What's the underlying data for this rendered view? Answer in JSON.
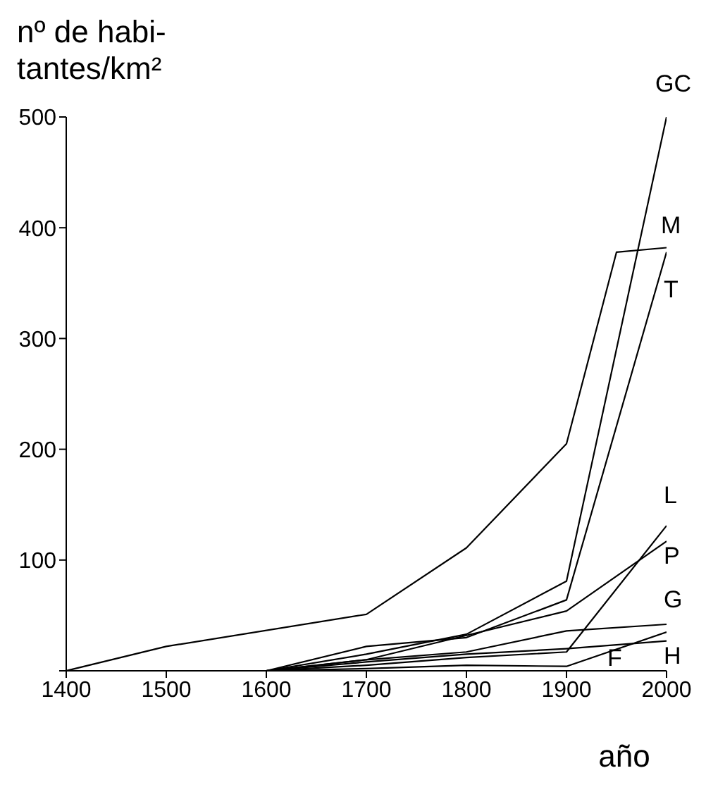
{
  "chart_data": {
    "type": "line",
    "xlabel": "año",
    "ylabel": "nº de habi-\ntantes/km²",
    "xlim": [
      1400,
      2000
    ],
    "xticks": [
      1400,
      1500,
      1600,
      1700,
      1800,
      1900,
      2000
    ],
    "ylim": [
      0,
      500
    ],
    "yticks": [
      {
        "value": 0,
        "label": null
      },
      100,
      200,
      300,
      400,
      500
    ],
    "grid": false,
    "legend": false,
    "marker": "none",
    "line_style": "solid",
    "series": [
      {
        "name": "GC",
        "color": "#000000",
        "x": [
          1600,
          1700,
          1800,
          1900,
          2000
        ],
        "values": [
          0,
          15,
          33,
          81,
          500
        ]
      },
      {
        "name": "M",
        "color": "#000000",
        "x": [
          1400,
          1500,
          1700,
          1800,
          1900,
          1950,
          2000
        ],
        "values": [
          0,
          22,
          51,
          111,
          205,
          378,
          382
        ]
      },
      {
        "name": "T",
        "color": "#000000",
        "x": [
          1600,
          1700,
          1800,
          1900,
          2000
        ],
        "values": [
          0,
          22,
          30,
          64,
          378
        ]
      },
      {
        "name": "L",
        "color": "#000000",
        "x": [
          1600,
          1700,
          1800,
          1900,
          2000
        ],
        "values": [
          0,
          5,
          12,
          17,
          131
        ]
      },
      {
        "name": "P",
        "color": "#000000",
        "x": [
          1600,
          1700,
          1800,
          1900,
          2000
        ],
        "values": [
          0,
          10,
          32,
          54,
          117
        ]
      },
      {
        "name": "G",
        "color": "#000000",
        "x": [
          1600,
          1700,
          1800,
          1900,
          2000
        ],
        "values": [
          0,
          10,
          17,
          36,
          42
        ]
      },
      {
        "name": "H",
        "color": "#000000",
        "x": [
          1600,
          1700,
          1800,
          1900,
          2000
        ],
        "values": [
          0,
          8,
          15,
          20,
          27
        ]
      },
      {
        "name": "F",
        "color": "#000000",
        "x": [
          1400,
          1600,
          1700,
          1800,
          1900,
          2000
        ],
        "values": [
          0,
          0,
          2,
          5,
          4,
          35
        ]
      }
    ]
  }
}
